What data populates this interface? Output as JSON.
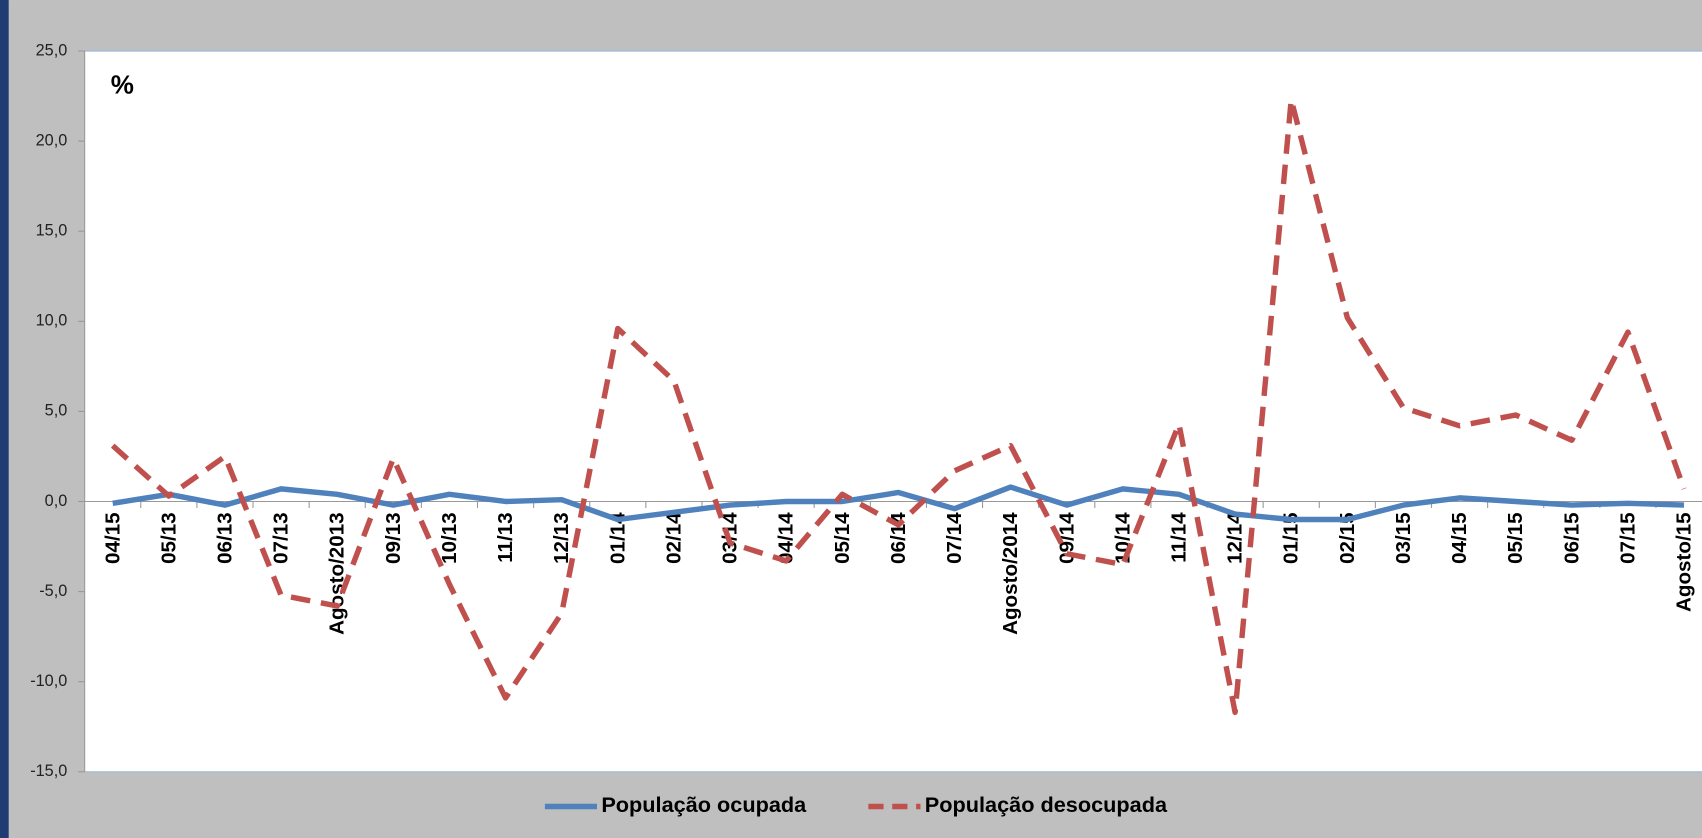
{
  "chart_data": {
    "type": "line",
    "annotation": "%",
    "categories": [
      "04/15",
      "05/13",
      "06/13",
      "07/13",
      "Agosto/2013",
      "09/13",
      "10/13",
      "11/13",
      "12/13",
      "01/14",
      "02/14",
      "03/14",
      "04/14",
      "05/14",
      "06/14",
      "07/14",
      "Agosto/2014",
      "09/14",
      "10/14",
      "11/14",
      "12/14",
      "01/15",
      "02/15",
      "03/15",
      "04/15",
      "05/15",
      "06/15",
      "07/15",
      "Agosto/15"
    ],
    "series": [
      {
        "name": "População ocupada",
        "color": "#4f81bd",
        "dash": false,
        "values": [
          -0.1,
          0.4,
          -0.2,
          0.7,
          0.4,
          -0.2,
          0.4,
          0.0,
          0.1,
          -1.0,
          -0.6,
          -0.2,
          0.0,
          0.0,
          0.5,
          -0.4,
          0.8,
          -0.2,
          0.7,
          0.4,
          -0.7,
          -1.0,
          -1.0,
          -0.2,
          0.2,
          0.0,
          -0.2,
          -0.1,
          -0.2
        ]
      },
      {
        "name": "População desocupada",
        "color": "#c0504d",
        "dash": true,
        "values": [
          3.1,
          0.3,
          2.5,
          -5.2,
          -5.8,
          2.4,
          -4.6,
          -10.9,
          -6.2,
          9.6,
          6.7,
          -2.3,
          -3.3,
          0.4,
          -1.3,
          1.7,
          3.1,
          -2.9,
          -3.5,
          4.3,
          -11.7,
          22.3,
          10.2,
          5.2,
          4.2,
          4.8,
          3.4,
          9.4,
          0.7
        ]
      }
    ],
    "ylim": [
      -15,
      25
    ],
    "yticks": [
      {
        "value": -15,
        "label": "-15,0"
      },
      {
        "value": -10,
        "label": "-10,0"
      },
      {
        "value": -5,
        "label": "-5,0"
      },
      {
        "value": 0,
        "label": "0,0"
      },
      {
        "value": 5,
        "label": "5,0"
      },
      {
        "value": 10,
        "label": "10,0"
      },
      {
        "value": 15,
        "label": "15,0"
      },
      {
        "value": 20,
        "label": "20,0"
      },
      {
        "value": 25,
        "label": "25,0"
      }
    ],
    "legend": "bottom"
  }
}
